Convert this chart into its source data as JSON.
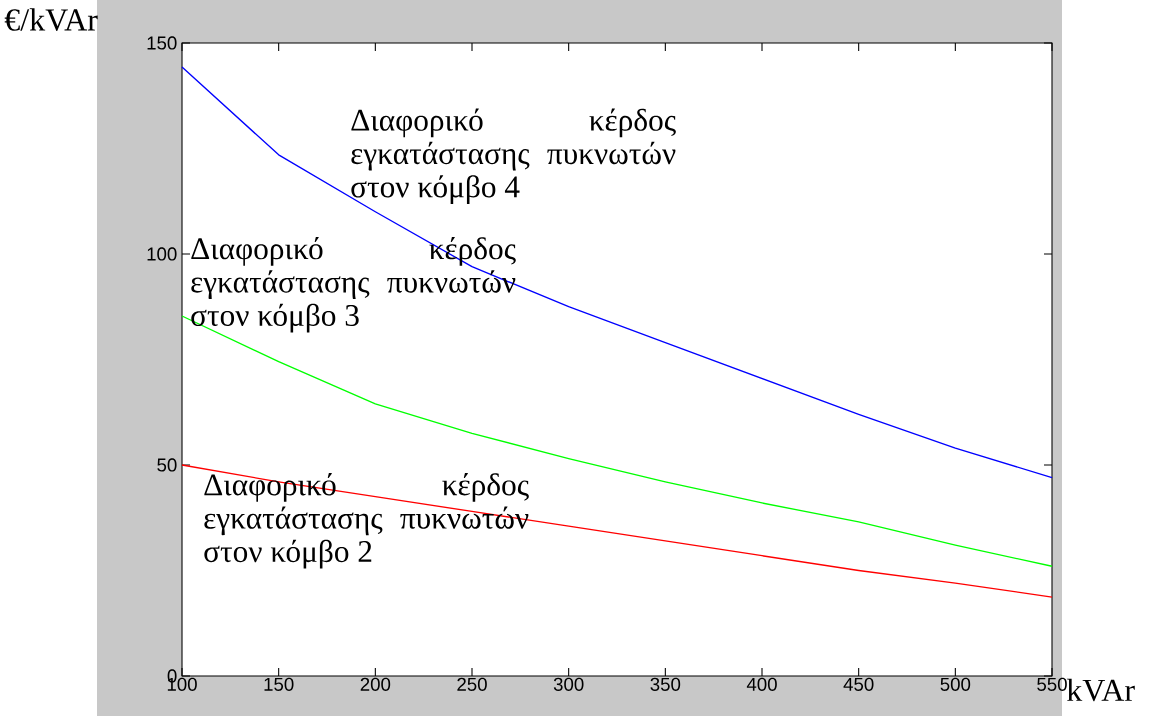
{
  "chart_data": {
    "type": "line",
    "xlabel": "kVAr",
    "ylabel": "€/kVAr",
    "x": [
      100,
      150,
      200,
      250,
      300,
      350,
      400,
      450,
      500,
      550
    ],
    "series": [
      {
        "color": "#0000ff",
        "values": [
          144.3,
          123.5,
          110,
          97,
          87.5,
          79,
          70.5,
          62,
          54,
          47
        ]
      },
      {
        "color": "#00ff00",
        "values": [
          85.3,
          74.5,
          64.5,
          57.5,
          51.5,
          46,
          41,
          36.5,
          31,
          26
        ]
      },
      {
        "color": "#ff0000",
        "values": [
          50,
          46,
          42.5,
          39,
          35.5,
          32,
          28.5,
          25,
          22,
          18.7
        ]
      }
    ],
    "xlim": [
      100,
      550
    ],
    "ylim": [
      0,
      150
    ],
    "xticks": [
      100,
      150,
      200,
      250,
      300,
      350,
      400,
      450,
      500,
      550
    ],
    "yticks": [
      0,
      50,
      100,
      150
    ],
    "annotations": [
      "Διαφορικό κέρδος εγκατάστασης πυκνωτών στον κόμβο 4",
      "Διαφορικό κέρδος εγκατάστασης πυκνωτών στον κόμβο 3",
      "Διαφορικό κέρδος εγκατάστασης πυκνωτών στον κόμβο 2"
    ]
  }
}
